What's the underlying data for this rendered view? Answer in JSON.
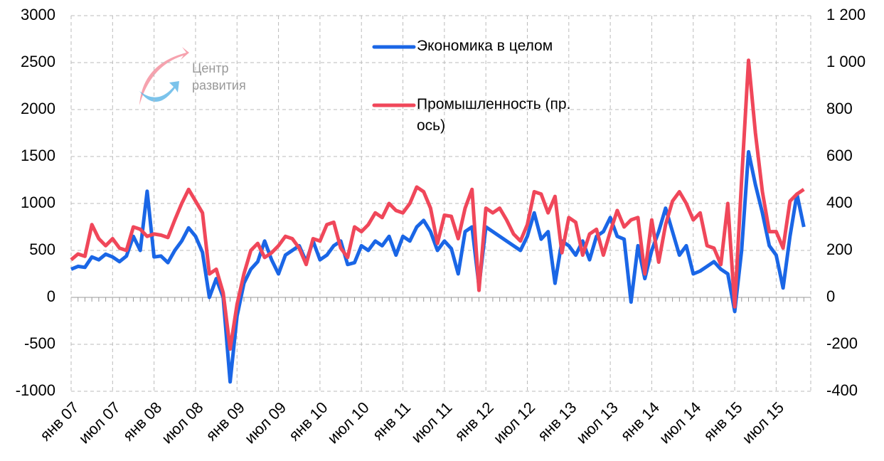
{
  "chart_data": {
    "type": "line",
    "watermark": "Центр развития",
    "categories": [
      "янв 07",
      null,
      null,
      null,
      null,
      null,
      "июл 07",
      null,
      null,
      null,
      null,
      null,
      "янв 08",
      null,
      null,
      null,
      null,
      null,
      "июл 08",
      null,
      null,
      null,
      null,
      null,
      "янв 09",
      null,
      null,
      null,
      null,
      null,
      "июл 09",
      null,
      null,
      null,
      null,
      null,
      "янв 10",
      null,
      null,
      null,
      null,
      null,
      "июл 10",
      null,
      null,
      null,
      null,
      null,
      "янв 11",
      null,
      null,
      null,
      null,
      null,
      "июл 11",
      null,
      null,
      null,
      null,
      null,
      "янв 12",
      null,
      null,
      null,
      null,
      null,
      "июл 12",
      null,
      null,
      null,
      null,
      null,
      "янв 13",
      null,
      null,
      null,
      null,
      null,
      "июл 13",
      null,
      null,
      null,
      null,
      null,
      "янв 14",
      null,
      null,
      null,
      null,
      null,
      "июл 14",
      null,
      null,
      null,
      null,
      null,
      "янв 15",
      null,
      null,
      null,
      null,
      null,
      "июл 15",
      null,
      null,
      null,
      null
    ],
    "series": [
      {
        "name": "Экономика в целом",
        "color": "#1a66e6",
        "values": [
          300,
          330,
          320,
          430,
          400,
          460,
          430,
          380,
          440,
          650,
          500,
          1130,
          430,
          440,
          370,
          500,
          600,
          740,
          650,
          480,
          0,
          200,
          0,
          -900,
          -200,
          150,
          300,
          380,
          600,
          400,
          250,
          450,
          500,
          550,
          380,
          600,
          400,
          450,
          550,
          600,
          350,
          370,
          550,
          500,
          600,
          550,
          650,
          450,
          650,
          600,
          750,
          820,
          700,
          500,
          600,
          520,
          250,
          700,
          750,
          120,
          750,
          700,
          650,
          600,
          550,
          500,
          650,
          900,
          620,
          700,
          150,
          600,
          550,
          450,
          600,
          400,
          650,
          700,
          850,
          650,
          620,
          -50,
          550,
          200,
          500,
          700,
          950,
          700,
          450,
          550,
          250,
          280,
          330,
          380,
          300,
          250,
          -150,
          500,
          1550,
          1200,
          900,
          550,
          450,
          100,
          650,
          1100,
          750
        ]
      },
      {
        "name": "Промышленность (пр. ось)",
        "color": "#f0475a",
        "axis": "y2",
        "values": [
          160,
          185,
          175,
          310,
          250,
          220,
          250,
          210,
          200,
          300,
          290,
          260,
          270,
          265,
          255,
          330,
          400,
          460,
          410,
          360,
          100,
          120,
          20,
          -220,
          -30,
          100,
          200,
          230,
          170,
          190,
          220,
          260,
          250,
          210,
          140,
          250,
          240,
          310,
          320,
          210,
          170,
          300,
          280,
          310,
          360,
          340,
          400,
          370,
          360,
          400,
          470,
          450,
          380,
          230,
          350,
          345,
          250,
          380,
          460,
          30,
          380,
          360,
          380,
          330,
          270,
          240,
          310,
          450,
          440,
          360,
          430,
          190,
          340,
          320,
          180,
          270,
          290,
          180,
          280,
          370,
          300,
          330,
          340,
          100,
          330,
          150,
          310,
          410,
          450,
          400,
          330,
          360,
          220,
          210,
          140,
          400,
          -40,
          500,
          1010,
          700,
          450,
          280,
          280,
          210,
          410,
          440,
          460
        ]
      }
    ],
    "ylim": [
      -1000,
      3000
    ],
    "yticks": [
      -1000,
      -500,
      0,
      500,
      1000,
      1500,
      2000,
      2500,
      3000
    ],
    "y2lim": [
      -400,
      1200
    ],
    "y2ticks": [
      -400,
      -200,
      0,
      200,
      400,
      600,
      800,
      {
        "value": 1000,
        "label": "1 000"
      },
      {
        "value": 1200,
        "label": "1 200"
      }
    ],
    "grid": true
  }
}
